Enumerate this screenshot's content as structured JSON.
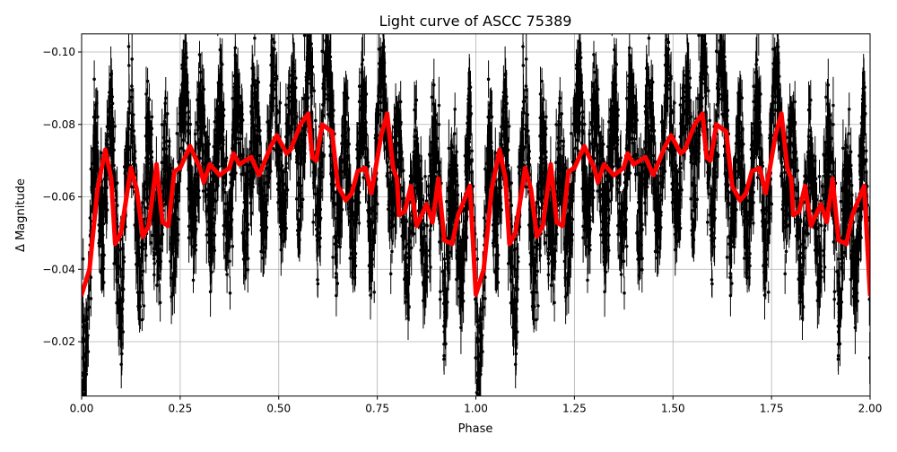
{
  "chart_data": {
    "type": "scatter",
    "title": "Light curve of ASCC 75389",
    "xlabel": "Phase",
    "ylabel": "Δ Magnitude",
    "xlim": [
      0,
      2
    ],
    "ylim": [
      -0.005,
      -0.105
    ],
    "y_inverted": true,
    "grid": true,
    "xticks": [
      0,
      0.25,
      0.5,
      0.75,
      1.0,
      1.25,
      1.5,
      1.75,
      2.0
    ],
    "xtick_labels": [
      "0.00",
      "0.25",
      "0.50",
      "0.75",
      "1.00",
      "1.25",
      "1.50",
      "1.75",
      "2.00"
    ],
    "yticks": [
      -0.1,
      -0.08,
      -0.06,
      -0.04,
      -0.02
    ],
    "ytick_labels": [
      "−0.10",
      "−0.08",
      "−0.06",
      "−0.04",
      "−0.02"
    ],
    "colors": {
      "points": "#000000",
      "fit": "#ff0000",
      "grid": "#b0b0b0"
    },
    "series": [
      {
        "style": "black points with error bars, phase-folded, repeated over two cycles",
        "color": "#000000"
      },
      {
        "style": "red fitted model line",
        "color": "#ff0000",
        "phase": [
          0.0,
          0.02,
          0.04,
          0.06,
          0.075,
          0.085,
          0.1,
          0.125,
          0.14,
          0.155,
          0.17,
          0.19,
          0.205,
          0.22,
          0.235,
          0.25,
          0.275,
          0.3,
          0.31,
          0.325,
          0.35,
          0.375,
          0.385,
          0.4,
          0.43,
          0.45,
          0.48,
          0.495,
          0.52,
          0.53,
          0.555,
          0.575,
          0.585,
          0.595,
          0.61,
          0.635,
          0.65,
          0.67,
          0.685,
          0.7,
          0.72,
          0.735,
          0.76,
          0.775,
          0.79,
          0.8,
          0.805,
          0.82,
          0.835,
          0.85,
          0.875,
          0.89,
          0.905,
          0.92,
          0.94,
          0.955,
          0.985,
          1.0
        ],
        "magnitude": [
          -0.033,
          -0.04,
          -0.062,
          -0.073,
          -0.065,
          -0.047,
          -0.05,
          -0.068,
          -0.062,
          -0.049,
          -0.052,
          -0.069,
          -0.053,
          -0.052,
          -0.067,
          -0.068,
          -0.074,
          -0.068,
          -0.064,
          -0.069,
          -0.066,
          -0.068,
          -0.072,
          -0.069,
          -0.071,
          -0.066,
          -0.074,
          -0.077,
          -0.072,
          -0.073,
          -0.08,
          -0.083,
          -0.071,
          -0.07,
          -0.08,
          -0.078,
          -0.063,
          -0.059,
          -0.061,
          -0.067,
          -0.068,
          -0.061,
          -0.077,
          -0.083,
          -0.068,
          -0.065,
          -0.055,
          -0.056,
          -0.063,
          -0.052,
          -0.058,
          -0.053,
          -0.065,
          -0.048,
          -0.047,
          -0.055,
          -0.063,
          -0.033
        ]
      }
    ]
  }
}
